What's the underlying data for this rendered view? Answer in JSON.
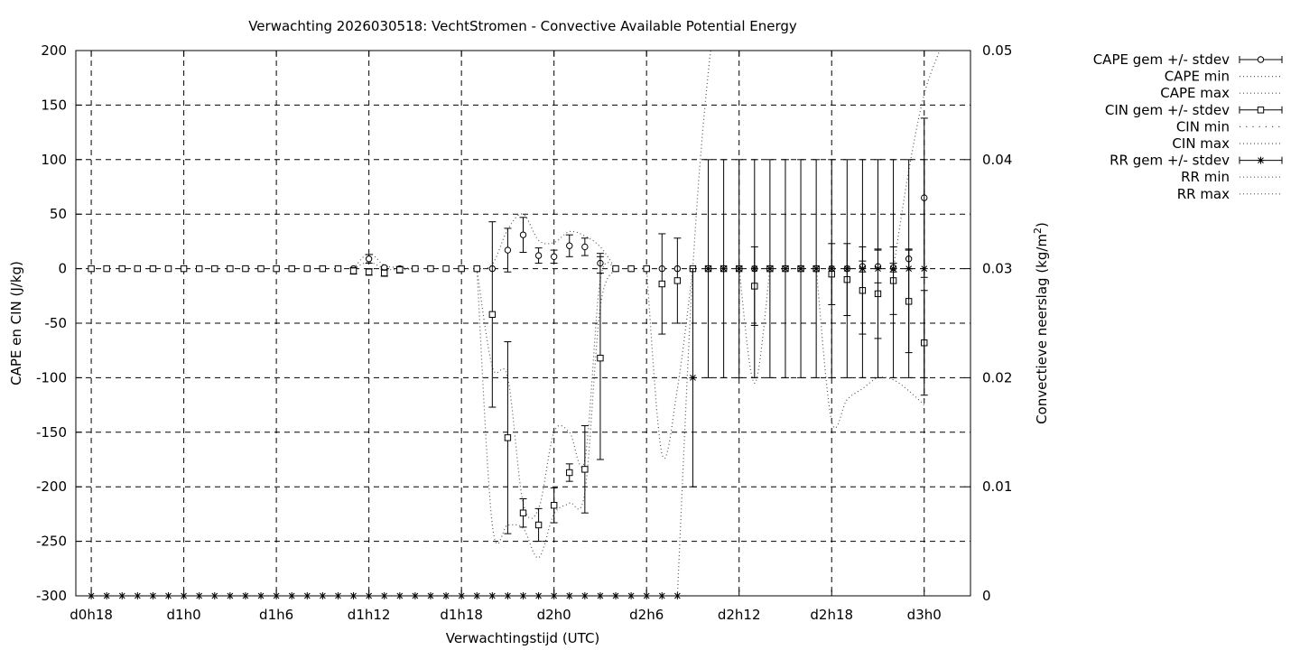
{
  "chart_data": {
    "type": "line",
    "title": "Verwachting 2026030518: VechtStromen - Convective Available Potential Energy",
    "xlabel": "Verwachtingstijd (UTC)",
    "ylabel": "CAPE en CIN (J/kg)",
    "y2label": "Convectieve neerslag (kg/m",
    "y2label_sup": "2",
    "y2label_end": ")",
    "ylim": [
      -300,
      200
    ],
    "y2lim": [
      0,
      0.05
    ],
    "xlim": [
      -1,
      57
    ],
    "y_ticks": [
      200,
      150,
      100,
      50,
      0,
      -50,
      -100,
      -150,
      -200,
      -250,
      -300
    ],
    "y2_ticks": [
      "0.05",
      "0.04",
      "0.03",
      "0.02",
      "0.01",
      "0"
    ],
    "x_ticks": [
      {
        "x": 0,
        "label": "d0h18"
      },
      {
        "x": 6,
        "label": "d1h0"
      },
      {
        "x": 12,
        "label": "d1h6"
      },
      {
        "x": 18,
        "label": "d1h12"
      },
      {
        "x": 24,
        "label": "d1h18"
      },
      {
        "x": 30,
        "label": "d2h0"
      },
      {
        "x": 36,
        "label": "d2h6"
      },
      {
        "x": 42,
        "label": "d2h12"
      },
      {
        "x": 48,
        "label": "d2h18"
      },
      {
        "x": 54,
        "label": "d3h0"
      }
    ],
    "grid": true,
    "legend_position": "outside-right",
    "legend": [
      {
        "label": "CAPE gem +/- stdev",
        "style": "errorbar",
        "marker": "circle"
      },
      {
        "label": "CAPE min",
        "style": "dotted"
      },
      {
        "label": "CAPE max",
        "style": "dotted"
      },
      {
        "label": "CIN gem +/- stdev",
        "style": "errorbar",
        "marker": "square"
      },
      {
        "label": "CIN min",
        "style": "sparse-dotted"
      },
      {
        "label": "CIN max",
        "style": "dotted"
      },
      {
        "label": "RR gem +/- stdev",
        "style": "errorbar",
        "marker": "star"
      },
      {
        "label": "RR min",
        "style": "dotted"
      },
      {
        "label": "RR max",
        "style": "dotted"
      }
    ],
    "series": [
      {
        "key": "cape",
        "axis": "y",
        "marker": "circle",
        "x": [
          0,
          1,
          2,
          3,
          4,
          5,
          6,
          7,
          8,
          9,
          10,
          11,
          12,
          13,
          14,
          15,
          16,
          17,
          18,
          19,
          20,
          21,
          22,
          23,
          24,
          25,
          26,
          27,
          28,
          29,
          30,
          31,
          32,
          33,
          34,
          35,
          36,
          37,
          38,
          39,
          40,
          41,
          42,
          43,
          44,
          45,
          46,
          47,
          48,
          49,
          50,
          51,
          52,
          53,
          54
        ],
        "mean": [
          0,
          0,
          0,
          0,
          0,
          0,
          0,
          0,
          0,
          0,
          0,
          0,
          0,
          0,
          0,
          0,
          0,
          0,
          9,
          1,
          0,
          0,
          0,
          0,
          0,
          0,
          0,
          17,
          31,
          12,
          11,
          21,
          20,
          5,
          0,
          0,
          0,
          0,
          0,
          0,
          0,
          0,
          0,
          0,
          0,
          0,
          0,
          0,
          0,
          0,
          2,
          2,
          1,
          9,
          65
        ],
        "stdev": [
          0,
          0,
          0,
          0,
          0,
          0,
          0,
          0,
          0,
          0,
          0,
          0,
          0,
          0,
          0,
          0,
          0,
          0,
          4,
          1,
          0,
          0,
          0,
          0,
          0,
          0,
          0,
          20,
          16,
          7,
          6,
          10,
          8,
          9,
          0,
          0,
          0,
          0,
          0,
          0,
          0,
          0,
          0,
          0,
          0,
          0,
          0,
          0,
          0,
          0,
          5,
          15,
          4,
          9,
          73
        ],
        "draw_bars": [
          18,
          19,
          27,
          28,
          29,
          30,
          31,
          32,
          33,
          50,
          51,
          52,
          53,
          54
        ]
      },
      {
        "key": "cin",
        "axis": "y",
        "marker": "square",
        "x": [
          0,
          1,
          2,
          3,
          4,
          5,
          6,
          7,
          8,
          9,
          10,
          11,
          12,
          13,
          14,
          15,
          16,
          17,
          18,
          19,
          20,
          21,
          22,
          23,
          24,
          25,
          26,
          27,
          28,
          29,
          30,
          31,
          32,
          33,
          34,
          35,
          36,
          37,
          38,
          39,
          40,
          41,
          42,
          43,
          44,
          45,
          46,
          47,
          48,
          49,
          50,
          51,
          52,
          53,
          54
        ],
        "mean": [
          0,
          0,
          0,
          0,
          0,
          0,
          0,
          0,
          0,
          0,
          0,
          0,
          0,
          0,
          0,
          0,
          0,
          -2,
          -3,
          -4,
          -1,
          0,
          0,
          0,
          0,
          0,
          -42,
          -155,
          -224,
          -235,
          -217,
          -187,
          -184,
          -82,
          0,
          0,
          0,
          -14,
          -11,
          0,
          0,
          0,
          0,
          -16,
          0,
          0,
          0,
          0,
          -5,
          -10,
          -20,
          -23,
          -11,
          -30,
          -68
        ],
        "stdev": [
          0,
          0,
          0,
          0,
          0,
          0,
          0,
          0,
          0,
          0,
          0,
          0,
          0,
          0,
          0,
          0,
          0,
          3,
          3,
          3,
          3,
          0,
          0,
          0,
          0,
          0,
          85,
          88,
          13,
          15,
          16,
          8,
          40,
          93,
          0,
          0,
          0,
          46,
          39,
          0,
          0,
          0,
          0,
          36,
          0,
          0,
          0,
          0,
          28,
          33,
          40,
          41,
          31,
          47,
          48
        ],
        "draw_bars": [
          17,
          18,
          19,
          20,
          26,
          27,
          28,
          29,
          30,
          31,
          32,
          33,
          37,
          38,
          43,
          48,
          49,
          50,
          51,
          52,
          53,
          54
        ]
      },
      {
        "key": "rr",
        "axis": "y2",
        "marker": "star",
        "x": [
          0,
          1,
          2,
          3,
          4,
          5,
          6,
          7,
          8,
          9,
          10,
          11,
          12,
          13,
          14,
          15,
          16,
          17,
          18,
          19,
          20,
          21,
          22,
          23,
          24,
          25,
          26,
          27,
          28,
          29,
          30,
          31,
          32,
          33,
          34,
          35,
          36,
          37,
          38,
          39,
          40,
          41,
          42,
          43,
          44,
          45,
          46,
          47,
          48,
          49,
          50,
          51,
          52,
          53,
          54
        ],
        "mean": [
          0,
          0,
          0,
          0,
          0,
          0,
          0,
          0,
          0,
          0,
          0,
          0,
          0,
          0,
          0,
          0,
          0,
          0,
          0,
          0,
          0,
          0,
          0,
          0,
          0,
          0,
          0,
          0,
          0,
          0,
          0,
          0,
          0,
          0,
          0,
          0,
          0,
          0,
          0,
          0.02,
          0.03,
          0.03,
          0.03,
          0.03,
          0.03,
          0.03,
          0.03,
          0.03,
          0.03,
          0.03,
          0.03,
          0.03,
          0.03,
          0.03,
          0.03
        ],
        "stdev": [
          0,
          0,
          0,
          0,
          0,
          0,
          0,
          0,
          0,
          0,
          0,
          0,
          0,
          0,
          0,
          0,
          0,
          0,
          0,
          0,
          0,
          0,
          0,
          0,
          0,
          0,
          0,
          0,
          0,
          0,
          0,
          0,
          0,
          0,
          0,
          0,
          0,
          0,
          0,
          0.01,
          0.01,
          0.01,
          0.01,
          0.01,
          0.01,
          0.01,
          0.01,
          0.01,
          0.01,
          0.01,
          0.01,
          0.01,
          0.01,
          0.01,
          0.01
        ],
        "draw_bars": [
          39,
          40,
          41,
          42,
          43,
          44,
          45,
          46,
          47,
          48,
          49,
          50,
          51,
          52,
          53,
          54
        ]
      }
    ],
    "envelopes": [
      {
        "key": "cape-min",
        "axis": "y",
        "x": [
          17,
          18,
          19,
          20,
          21
        ],
        "y": [
          0,
          6,
          0,
          -1,
          0
        ]
      },
      {
        "key": "cape-max",
        "axis": "y",
        "x": [
          17,
          18,
          19,
          20,
          21
        ],
        "y": [
          0,
          14,
          3,
          1,
          0
        ]
      },
      {
        "key": "cape-max-2",
        "axis": "y",
        "x": [
          25,
          26,
          27,
          28,
          29,
          30,
          31,
          32,
          33,
          34
        ],
        "y": [
          0,
          4,
          36,
          50,
          26,
          24,
          34,
          30,
          20,
          0
        ]
      },
      {
        "key": "cin-min",
        "axis": "y",
        "x": [
          25,
          26,
          27,
          28,
          29,
          30,
          31,
          32,
          33,
          34
        ],
        "y": [
          0,
          -235,
          -235,
          -238,
          -265,
          -225,
          -215,
          -205,
          -35,
          0
        ]
      },
      {
        "key": "cin-max",
        "axis": "y",
        "x": [
          25,
          26,
          27,
          28,
          29,
          30,
          31,
          32,
          33,
          34
        ],
        "y": [
          0,
          -90,
          -100,
          -215,
          -220,
          -150,
          -150,
          -175,
          -10,
          0
        ]
      },
      {
        "key": "cin-min-2",
        "axis": "y",
        "x": [
          36,
          37,
          38,
          39
        ],
        "y": [
          0,
          -170,
          -110,
          0
        ]
      },
      {
        "key": "cin-min-3",
        "axis": "y",
        "x": [
          42,
          43,
          44
        ],
        "y": [
          0,
          -105,
          0
        ]
      },
      {
        "key": "cin-min-4",
        "axis": "y",
        "x": [
          47,
          48,
          49,
          50,
          51,
          52,
          53,
          54
        ],
        "y": [
          0,
          -140,
          -120,
          -110,
          -100,
          -102,
          -112,
          -125
        ]
      },
      {
        "key": "rr-max",
        "axis": "y2",
        "x": [
          38,
          39,
          40,
          41
        ],
        "y": [
          0,
          0.03,
          0.048,
          0.058
        ]
      },
      {
        "key": "rr-max-2",
        "axis": "y2",
        "x": [
          52,
          53,
          54,
          55
        ],
        "y": [
          0.03,
          0.039,
          0.046,
          0.05
        ]
      }
    ]
  }
}
